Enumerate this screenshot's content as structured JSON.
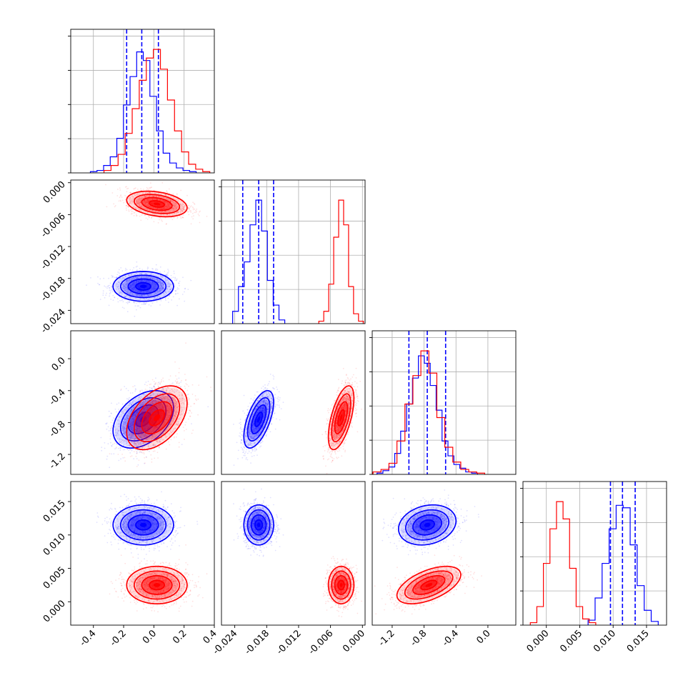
{
  "chart_data": {
    "type": "corner",
    "colors": {
      "series_a": "#0000ff",
      "series_b": "#ff0000"
    },
    "grid": true,
    "quantile_line_style": "dashed",
    "parameters": [
      {
        "name": "",
        "ticks": [
          "-0.4",
          "-0.2",
          "0.0",
          "0.2",
          "0.4"
        ],
        "tick_values": [
          -0.4,
          -0.2,
          0.0,
          0.2,
          0.4
        ],
        "range": [
          -0.55,
          0.4
        ]
      },
      {
        "name": "",
        "ticks": [
          "-0.024",
          "-0.018",
          "-0.012",
          "-0.006",
          "0.000"
        ],
        "tick_values": [
          -0.024,
          -0.018,
          -0.012,
          -0.006,
          0.0
        ],
        "range": [
          -0.0265,
          0.0005
        ]
      },
      {
        "name": "",
        "ticks": [
          "-1.2",
          "-0.8",
          "-0.4",
          "0.0"
        ],
        "tick_values": [
          -1.2,
          -0.8,
          -0.4,
          0.0
        ],
        "range": [
          -1.45,
          0.35
        ]
      },
      {
        "name": "",
        "ticks": [
          "0.000",
          "0.005",
          "0.010",
          "0.015"
        ],
        "tick_values": [
          0.0,
          0.005,
          0.01,
          0.015
        ],
        "range": [
          -0.0035,
          0.018
        ]
      }
    ],
    "series": [
      {
        "name": "",
        "color": "#0000ff",
        "means": [
          -0.07,
          -0.0195,
          -0.76,
          0.0115
        ],
        "sds": [
          0.1,
          0.0014,
          0.18,
          0.0015
        ],
        "correlations": [
          [
            0,
            2,
            0.4
          ],
          [
            1,
            2,
            0.6
          ],
          [
            2,
            3,
            0.2
          ]
        ],
        "quantiles": [
          [
            -0.18,
            -0.08,
            0.03
          ],
          [
            -0.0225,
            -0.0195,
            -0.0167
          ],
          [
            -0.99,
            -0.76,
            -0.53
          ],
          [
            0.0096,
            0.0114,
            0.0133
          ]
        ],
        "histograms": [
          [
            0.01,
            0.02,
            0.06,
            0.13,
            0.28,
            0.55,
            0.78,
            0.98,
            0.91,
            0.62,
            0.34,
            0.16,
            0.08,
            0.04,
            0.02,
            0.01
          ],
          [
            0.1,
            0.3,
            0.5,
            0.8,
            1.0,
            0.75,
            0.35,
            0.15,
            0.03
          ],
          [
            0.01,
            0.03,
            0.06,
            0.17,
            0.35,
            0.57,
            0.78,
            0.96,
            0.9,
            0.72,
            0.52,
            0.27,
            0.15,
            0.08,
            0.05,
            0.02,
            0.01
          ],
          [
            0.04,
            0.22,
            0.5,
            0.78,
            0.97,
            0.95,
            0.65,
            0.32,
            0.12,
            0.03
          ]
        ]
      },
      {
        "name": "",
        "color": "#ff0000",
        "means": [
          0.02,
          -0.004,
          -0.74,
          0.0025
        ],
        "sds": [
          0.1,
          0.0012,
          0.2,
          0.0014
        ],
        "correlations": [
          [
            0,
            1,
            -0.3
          ],
          [
            0,
            2,
            0.45
          ],
          [
            1,
            2,
            0.6
          ],
          [
            2,
            3,
            0.55
          ]
        ],
        "quantiles": [],
        "histograms": [
          [
            0.02,
            0.06,
            0.15,
            0.32,
            0.52,
            0.75,
            0.93,
            1.0,
            0.84,
            0.59,
            0.34,
            0.17,
            0.07,
            0.03,
            0.01
          ],
          [
            0.02,
            0.1,
            0.32,
            0.7,
            1.0,
            0.8,
            0.3,
            0.08,
            0.02
          ],
          [
            0.02,
            0.04,
            0.09,
            0.27,
            0.57,
            0.8,
            1.0,
            0.82,
            0.46,
            0.22,
            0.1,
            0.04,
            0.02,
            0.01
          ],
          [
            0.02,
            0.15,
            0.5,
            0.78,
            1.0,
            0.86,
            0.46,
            0.15,
            0.05,
            0.02
          ]
        ]
      }
    ]
  }
}
